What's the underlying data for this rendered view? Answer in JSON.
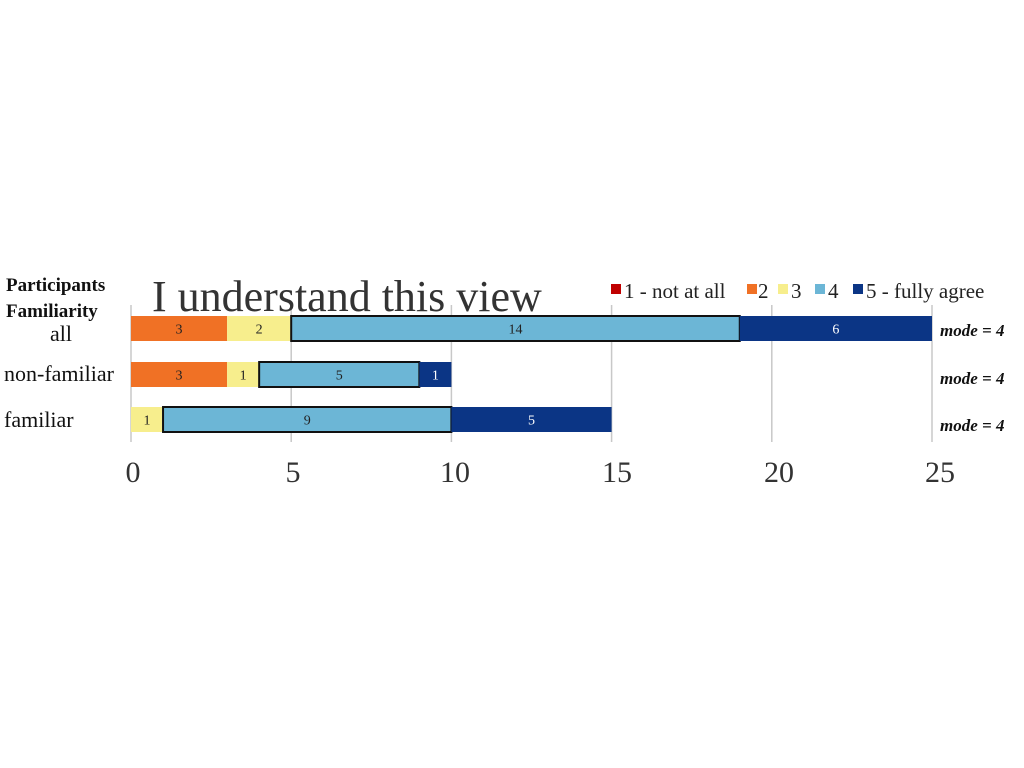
{
  "chart_data": {
    "type": "bar",
    "orientation": "horizontal-stacked",
    "title": "I understand this view",
    "row_header_1": "Participants",
    "row_header_2": "Familiarity",
    "categories": [
      "all",
      "non-familiar",
      "familiar"
    ],
    "series": [
      {
        "name": "1 - not at all",
        "color": "#c00000",
        "values": [
          0,
          0,
          0
        ]
      },
      {
        "name": "2",
        "color": "#f07125",
        "values": [
          3,
          3,
          0
        ]
      },
      {
        "name": "3",
        "color": "#f7ee8d",
        "values": [
          2,
          1,
          1
        ]
      },
      {
        "name": "4",
        "color": "#6cb6d6",
        "values": [
          14,
          5,
          9
        ]
      },
      {
        "name": "5 - fully agree",
        "color": "#0b3585",
        "values": [
          6,
          1,
          5
        ]
      }
    ],
    "xlim": [
      0,
      25
    ],
    "xticks": [
      "0",
      "5",
      "10",
      "15",
      "20",
      "25"
    ],
    "grid": true,
    "legend_position": "top-right",
    "annotations": [
      "mode = 4",
      "mode = 4",
      "mode = 4"
    ]
  }
}
